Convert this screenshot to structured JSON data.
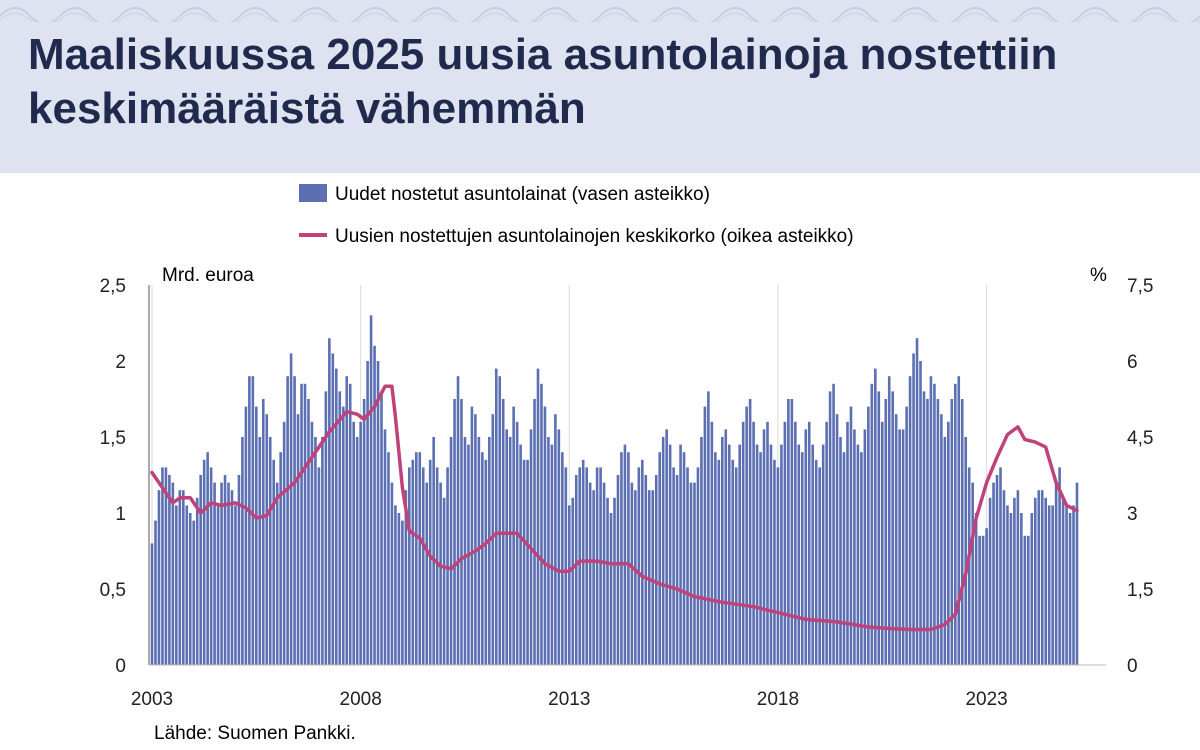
{
  "header": {
    "title": "Maaliskuussa 2025 uusia asuntolainoja nostettiin keskimääräistä vähemmän",
    "background": "#dfe2f0",
    "title_color": "#1f2a4d"
  },
  "source": "Lähde: Suomen Pankki.",
  "chart_data": {
    "type": "bar+line",
    "title": "",
    "legend": [
      "Uudet nostetut asuntolainat (vasen asteikko)",
      "Uusien nostettujen asuntolainojen keskikorko (oikea asteikko)"
    ],
    "legend_placement": "top",
    "ylabel_left": "Mrd. euroa",
    "ylabel_right": "%",
    "y_left_range": [
      0,
      2.5
    ],
    "y_right_range": [
      0,
      7.5
    ],
    "y_left_ticks": [
      "0",
      "0,5",
      "1",
      "1,5",
      "2",
      "2,5"
    ],
    "y_right_ticks": [
      "0",
      "1,5",
      "3",
      "4,5",
      "6",
      "7,5"
    ],
    "x_ticks": [
      "2003",
      "2008",
      "2013",
      "2018",
      "2023"
    ],
    "x_range": [
      "2003-01",
      "2025-03"
    ],
    "grid": "vertical",
    "frequency": "monthly",
    "colors": {
      "bars": "#5b6fb2",
      "line": "#c0427a"
    },
    "series": [
      {
        "name": "Uudet nostetut asuntolainat (vasen asteikko)",
        "kind": "bar",
        "axis": "left",
        "annual_profile": {
          "2003": [
            0.8,
            0.95,
            1.15,
            1.3,
            1.3,
            1.25,
            1.2,
            1.05,
            1.15,
            1.15,
            1.05,
            1.0
          ],
          "2004": [
            0.95,
            1.1,
            1.25,
            1.35,
            1.4,
            1.3,
            1.2,
            1.05,
            1.2,
            1.25,
            1.2,
            1.15
          ],
          "2005": [
            1.05,
            1.25,
            1.5,
            1.7,
            1.9,
            1.9,
            1.7,
            1.5,
            1.75,
            1.65,
            1.5,
            1.35
          ],
          "2006": [
            1.2,
            1.4,
            1.6,
            1.9,
            2.05,
            1.9,
            1.65,
            1.85,
            1.85,
            1.75,
            1.6,
            1.5
          ],
          "2007": [
            1.3,
            1.5,
            1.8,
            2.15,
            2.05,
            1.95,
            1.8,
            1.7,
            1.9,
            1.85,
            1.6,
            1.5
          ],
          "2008": [
            1.6,
            1.75,
            2.0,
            2.3,
            2.1,
            2.0,
            1.8,
            1.55,
            1.4,
            1.2,
            1.05,
            1.0
          ],
          "2009": [
            0.95,
            1.15,
            1.3,
            1.35,
            1.4,
            1.4,
            1.3,
            1.2,
            1.35,
            1.5,
            1.3,
            1.2
          ],
          "2010": [
            1.1,
            1.3,
            1.5,
            1.75,
            1.9,
            1.75,
            1.5,
            1.45,
            1.7,
            1.65,
            1.5,
            1.4
          ],
          "2011": [
            1.35,
            1.5,
            1.65,
            1.95,
            1.9,
            1.75,
            1.55,
            1.5,
            1.7,
            1.6,
            1.45,
            1.35
          ],
          "2012": [
            1.35,
            1.55,
            1.75,
            1.95,
            1.85,
            1.7,
            1.5,
            1.45,
            1.65,
            1.55,
            1.4,
            1.3
          ],
          "2013": [
            1.05,
            1.1,
            1.25,
            1.3,
            1.35,
            1.3,
            1.2,
            1.15,
            1.3,
            1.3,
            1.2,
            1.1
          ],
          "2014": [
            1.0,
            1.1,
            1.25,
            1.4,
            1.45,
            1.4,
            1.2,
            1.15,
            1.3,
            1.35,
            1.25,
            1.15
          ],
          "2015": [
            1.15,
            1.25,
            1.4,
            1.5,
            1.55,
            1.45,
            1.3,
            1.25,
            1.45,
            1.4,
            1.3,
            1.2
          ],
          "2016": [
            1.2,
            1.3,
            1.5,
            1.7,
            1.8,
            1.6,
            1.4,
            1.35,
            1.5,
            1.55,
            1.45,
            1.35
          ],
          "2017": [
            1.3,
            1.45,
            1.6,
            1.7,
            1.75,
            1.6,
            1.45,
            1.4,
            1.55,
            1.6,
            1.45,
            1.35
          ],
          "2018": [
            1.3,
            1.45,
            1.6,
            1.75,
            1.75,
            1.6,
            1.45,
            1.4,
            1.55,
            1.6,
            1.45,
            1.35
          ],
          "2019": [
            1.3,
            1.45,
            1.6,
            1.8,
            1.85,
            1.65,
            1.5,
            1.4,
            1.6,
            1.7,
            1.55,
            1.45
          ],
          "2020": [
            1.4,
            1.55,
            1.7,
            1.85,
            1.95,
            1.8,
            1.6,
            1.75,
            1.9,
            1.8,
            1.65,
            1.55
          ],
          "2021": [
            1.55,
            1.7,
            1.9,
            2.05,
            2.15,
            2.0,
            1.8,
            1.75,
            1.9,
            1.85,
            1.75,
            1.65
          ],
          "2022": [
            1.5,
            1.6,
            1.75,
            1.85,
            1.9,
            1.75,
            1.5,
            1.3,
            1.2,
            1.0,
            0.85,
            0.85
          ],
          "2023": [
            0.9,
            1.1,
            1.2,
            1.25,
            1.3,
            1.15,
            1.05,
            1.0,
            1.1,
            1.15,
            1.0,
            0.85
          ],
          "2024": [
            0.85,
            1.0,
            1.1,
            1.15,
            1.15,
            1.1,
            1.05,
            1.05,
            1.2,
            1.3,
            1.1,
            1.05
          ],
          "2025": [
            1.0,
            1.05,
            1.2
          ]
        }
      },
      {
        "name": "Uusien nostettujen asuntolainojen keskikorko (oikea asteikko)",
        "kind": "line",
        "axis": "right",
        "points": [
          [
            "2003-01",
            3.8
          ],
          [
            "2003-04",
            3.5
          ],
          [
            "2003-07",
            3.2
          ],
          [
            "2003-09",
            3.3
          ],
          [
            "2003-12",
            3.3
          ],
          [
            "2004-03",
            3.0
          ],
          [
            "2004-06",
            3.2
          ],
          [
            "2004-09",
            3.15
          ],
          [
            "2005-01",
            3.2
          ],
          [
            "2005-04",
            3.1
          ],
          [
            "2005-07",
            2.9
          ],
          [
            "2005-10",
            2.95
          ],
          [
            "2006-01",
            3.3
          ],
          [
            "2006-06",
            3.6
          ],
          [
            "2006-12",
            4.2
          ],
          [
            "2007-04",
            4.6
          ],
          [
            "2007-09",
            5.0
          ],
          [
            "2007-12",
            4.95
          ],
          [
            "2008-02",
            4.85
          ],
          [
            "2008-05",
            5.1
          ],
          [
            "2008-08",
            5.5
          ],
          [
            "2008-10",
            5.5
          ],
          [
            "2008-11",
            4.9
          ],
          [
            "2009-01",
            3.5
          ],
          [
            "2009-03",
            2.65
          ],
          [
            "2009-06",
            2.5
          ],
          [
            "2009-09",
            2.15
          ],
          [
            "2009-12",
            1.95
          ],
          [
            "2010-03",
            1.9
          ],
          [
            "2010-06",
            2.1
          ],
          [
            "2010-10",
            2.25
          ],
          [
            "2011-01",
            2.4
          ],
          [
            "2011-04",
            2.6
          ],
          [
            "2011-07",
            2.6
          ],
          [
            "2011-10",
            2.6
          ],
          [
            "2012-02",
            2.3
          ],
          [
            "2012-06",
            2.0
          ],
          [
            "2012-10",
            1.85
          ],
          [
            "2013-01",
            1.85
          ],
          [
            "2013-04",
            2.05
          ],
          [
            "2013-09",
            2.05
          ],
          [
            "2014-01",
            2.0
          ],
          [
            "2014-06",
            2.0
          ],
          [
            "2014-10",
            1.75
          ],
          [
            "2015-03",
            1.6
          ],
          [
            "2015-08",
            1.5
          ],
          [
            "2016-01",
            1.35
          ],
          [
            "2016-08",
            1.25
          ],
          [
            "2017-06",
            1.15
          ],
          [
            "2018-03",
            1.0
          ],
          [
            "2018-09",
            0.9
          ],
          [
            "2019-06",
            0.85
          ],
          [
            "2020-03",
            0.75
          ],
          [
            "2020-09",
            0.72
          ],
          [
            "2021-03",
            0.7
          ],
          [
            "2021-09",
            0.7
          ],
          [
            "2022-01",
            0.8
          ],
          [
            "2022-04",
            1.0
          ],
          [
            "2022-07",
            1.8
          ],
          [
            "2022-10",
            2.9
          ],
          [
            "2023-01",
            3.6
          ],
          [
            "2023-04",
            4.1
          ],
          [
            "2023-07",
            4.55
          ],
          [
            "2023-10",
            4.7
          ],
          [
            "2023-12",
            4.45
          ],
          [
            "2024-03",
            4.4
          ],
          [
            "2024-06",
            4.3
          ],
          [
            "2024-09",
            3.6
          ],
          [
            "2024-12",
            3.15
          ],
          [
            "2025-03",
            3.05
          ]
        ]
      }
    ]
  }
}
